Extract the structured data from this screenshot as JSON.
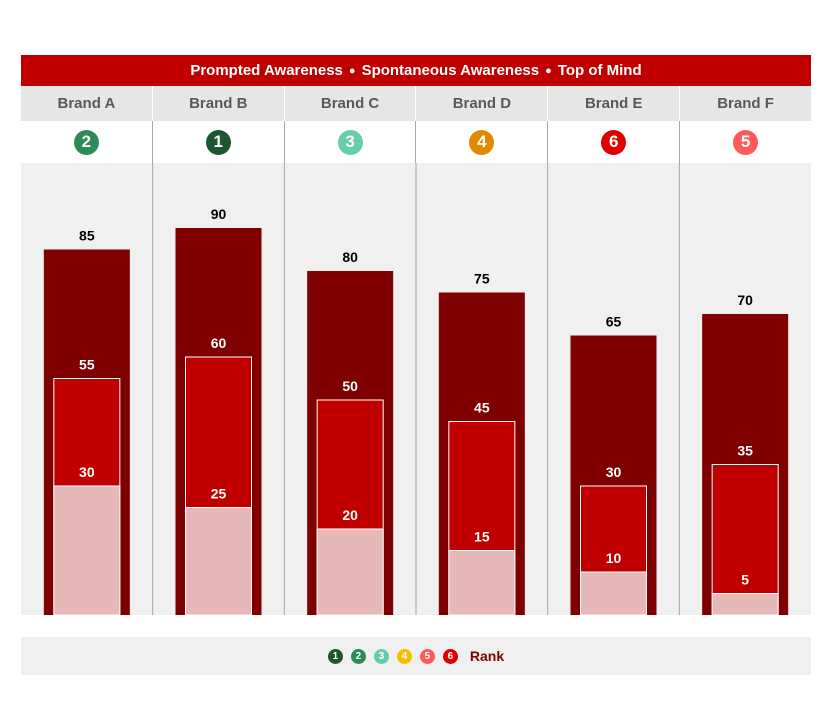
{
  "header": {
    "series_labels": [
      "Prompted Awareness",
      "Spontaneous Awareness",
      "Top of Mind"
    ],
    "separator": "●"
  },
  "colors": {
    "prompted": "#7f0000",
    "spontaneous": "#c00000",
    "top_of_mind": "#e6b8b8",
    "panel_bg": "#f0f0f0",
    "rank_1": "#1e5631",
    "rank_2": "#2e8b57",
    "rank_3": "#66cdaa",
    "rank_4": "#f0b800",
    "rank_5": "#ff5a5a",
    "rank_6": "#e00000"
  },
  "brands": [
    {
      "name": "Brand A",
      "rank": "2",
      "rank_color": "#2e8b57"
    },
    {
      "name": "Brand B",
      "rank": "1",
      "rank_color": "#1e5631"
    },
    {
      "name": "Brand C",
      "rank": "3",
      "rank_color": "#66cdaa"
    },
    {
      "name": "Brand D",
      "rank": "4",
      "rank_color": "#e08a00"
    },
    {
      "name": "Brand E",
      "rank": "6",
      "rank_color": "#e00000"
    },
    {
      "name": "Brand F",
      "rank": "5",
      "rank_color": "#ff5a5a"
    }
  ],
  "chart_data": {
    "type": "bar",
    "categories": [
      "Brand A",
      "Brand B",
      "Brand C",
      "Brand D",
      "Brand E",
      "Brand F"
    ],
    "series": [
      {
        "name": "Prompted Awareness",
        "values": [
          85,
          90,
          80,
          75,
          65,
          70
        ]
      },
      {
        "name": "Spontaneous Awareness",
        "values": [
          55,
          60,
          50,
          45,
          30,
          35
        ]
      },
      {
        "name": "Top of Mind",
        "values": [
          30,
          25,
          20,
          15,
          10,
          5
        ]
      }
    ],
    "ylim": [
      0,
      100
    ],
    "grid": false
  },
  "legend": {
    "ranks": [
      {
        "label": "1",
        "color": "#1e5631"
      },
      {
        "label": "2",
        "color": "#2e8b57"
      },
      {
        "label": "3",
        "color": "#66cdaa"
      },
      {
        "label": "4",
        "color": "#f0c000"
      },
      {
        "label": "5",
        "color": "#ff5a5a"
      },
      {
        "label": "6",
        "color": "#e00000"
      }
    ],
    "label": "Rank"
  }
}
